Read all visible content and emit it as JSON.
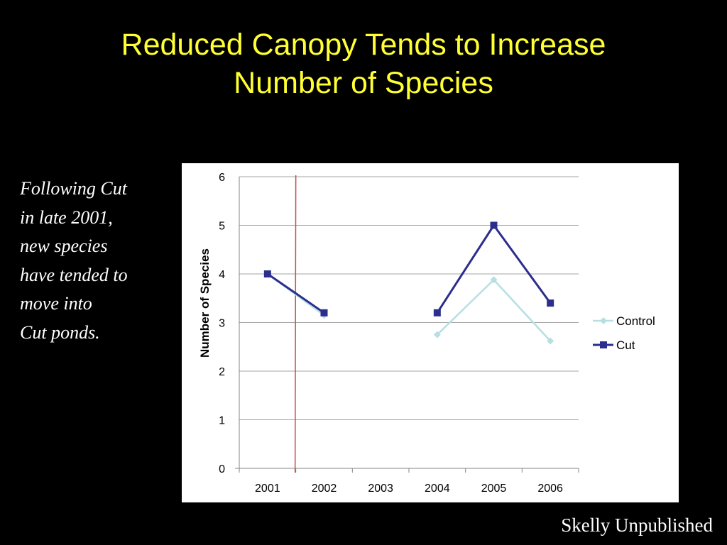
{
  "slide": {
    "title_lines": [
      "Reduced Canopy Tends to Increase",
      "Number of Species"
    ],
    "note_lines": [
      "Following Cut",
      "in late 2001,",
      "new species",
      "have tended to",
      "move into",
      "Cut ponds."
    ],
    "source": "Skelly Unpublished"
  },
  "colors": {
    "background": "#000000",
    "title": "#ffff33",
    "text": "#ffffff",
    "control": "#b7dfe2",
    "cut": "#2b2e8c",
    "marker_line": "#c0504d"
  },
  "chart_data": {
    "type": "line",
    "categories": [
      "2001",
      "2002",
      "2003",
      "2004",
      "2005",
      "2006"
    ],
    "series": [
      {
        "name": "Control",
        "marker": "diamond",
        "values": [
          4.0,
          3.15,
          null,
          2.75,
          3.88,
          2.62
        ]
      },
      {
        "name": "Cut",
        "marker": "square",
        "values": [
          4.0,
          3.2,
          null,
          3.2,
          5.0,
          3.4
        ]
      }
    ],
    "ylabel": "Number of Species",
    "xlabel": "",
    "ylim": [
      0,
      6
    ],
    "yticks": [
      0,
      1,
      2,
      3,
      4,
      5,
      6
    ],
    "grid": true,
    "legend": "right",
    "annotations": [
      {
        "type": "vertical-line",
        "x": "2001.5"
      }
    ]
  }
}
